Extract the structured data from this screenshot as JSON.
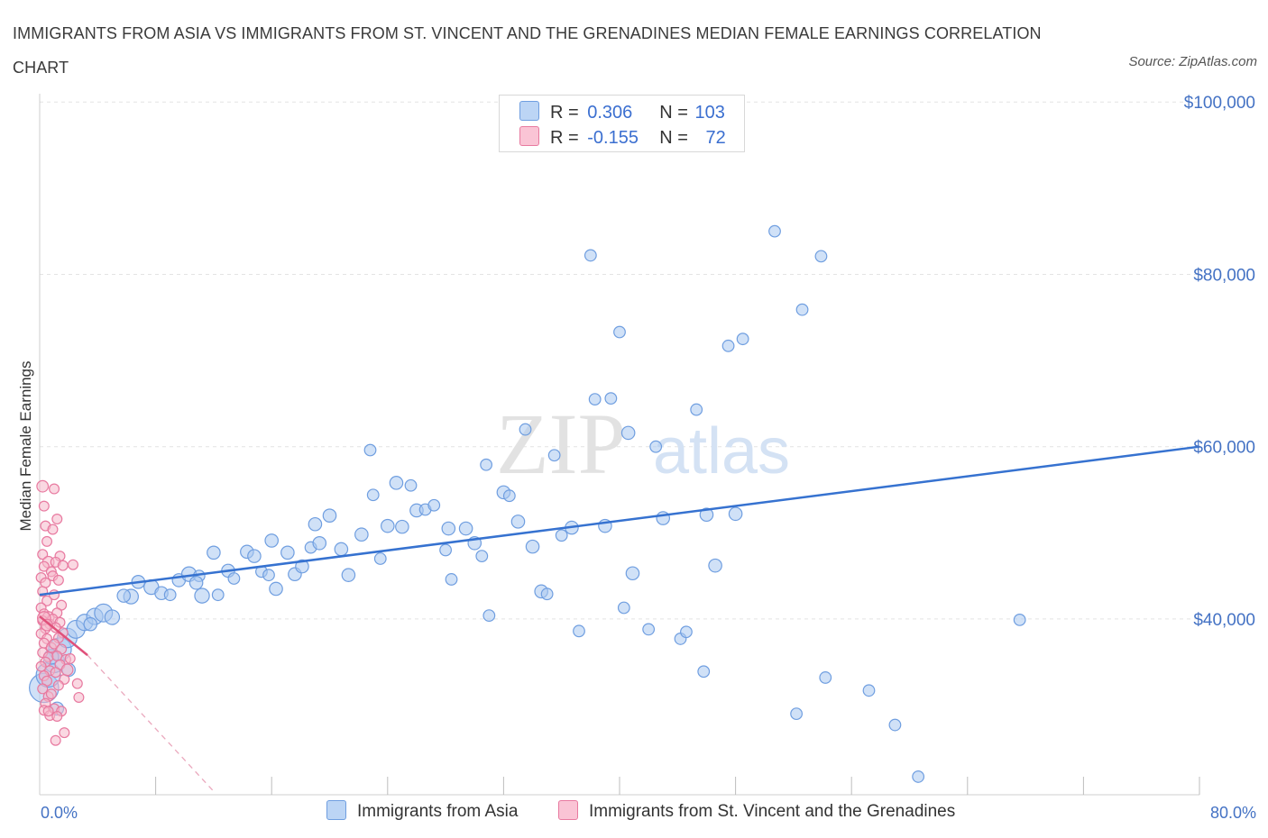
{
  "title": "IMMIGRANTS FROM ASIA VS IMMIGRANTS FROM ST. VINCENT AND THE GRENADINES MEDIAN FEMALE EARNINGS CORRELATION CHART",
  "source": "Source: ZipAtlas.com",
  "watermark": {
    "zip": "ZIP",
    "atlas": "atlas"
  },
  "legend": {
    "r_label": "R =",
    "n_label": "N =",
    "asia": {
      "r": "0.306",
      "n": "103"
    },
    "svg": {
      "r": "-0.155",
      "n": "72"
    }
  },
  "colors": {
    "asia_fill": "#aac8f0",
    "asia_stroke": "#6f9ee0",
    "asia_line": "#3672d0",
    "svg_fill": "#f6b8cb",
    "svg_stroke": "#e87aa0",
    "svg_line": "#e0507a",
    "axis_label": "#4472c4"
  },
  "chart_data": {
    "type": "scatter",
    "title": "IMMIGRANTS FROM ASIA VS IMMIGRANTS FROM ST. VINCENT AND THE GRENADINES MEDIAN FEMALE EARNINGS CORRELATION CHART",
    "xlabel": "",
    "ylabel": "Median Female Earnings",
    "xlim": [
      0,
      80
    ],
    "ylim": [
      20000,
      100000
    ],
    "x_tick_labels": [
      "0.0%",
      "80.0%"
    ],
    "y_ticks": [
      40000,
      60000,
      80000,
      100000
    ],
    "y_tick_labels": [
      "$40,000",
      "$60,000",
      "$80,000",
      "$100,000"
    ],
    "grid": true,
    "legend_position": "top-center",
    "series": [
      {
        "name": "Immigrants from Asia",
        "trend": {
          "x": [
            0,
            80
          ],
          "y": [
            42800,
            60000
          ]
        },
        "points": [
          [
            0.3,
            32000,
            1.8
          ],
          [
            0.6,
            33500,
            1.5
          ],
          [
            1.0,
            35000,
            1.3
          ],
          [
            1.4,
            36500,
            1.4
          ],
          [
            1.9,
            37800,
            1.2
          ],
          [
            2.5,
            38800,
            1.1
          ],
          [
            3.1,
            39600,
            1.0
          ],
          [
            3.8,
            40300,
            1.0
          ],
          [
            4.4,
            40700,
            1.1
          ],
          [
            5.0,
            40200,
            0.9
          ],
          [
            6.3,
            42600,
            0.9
          ],
          [
            6.8,
            44300,
            0.8
          ],
          [
            7.7,
            43700,
            0.9
          ],
          [
            8.4,
            43000,
            0.8
          ],
          [
            9.6,
            44500,
            0.8
          ],
          [
            10.3,
            45200,
            0.9
          ],
          [
            11.2,
            42700,
            0.9
          ],
          [
            12.0,
            47700,
            0.8
          ],
          [
            12.3,
            42800,
            0.7
          ],
          [
            11.0,
            45000,
            0.7
          ],
          [
            13.0,
            45600,
            0.8
          ],
          [
            13.4,
            44700,
            0.7
          ],
          [
            14.3,
            47800,
            0.8
          ],
          [
            14.8,
            47300,
            0.8
          ],
          [
            15.3,
            45500,
            0.7
          ],
          [
            16.0,
            49100,
            0.8
          ],
          [
            16.3,
            43500,
            0.8
          ],
          [
            17.1,
            47700,
            0.8
          ],
          [
            17.6,
            45200,
            0.8
          ],
          [
            18.1,
            46100,
            0.8
          ],
          [
            18.7,
            48300,
            0.7
          ],
          [
            19.3,
            48800,
            0.8
          ],
          [
            19.0,
            51000,
            0.8
          ],
          [
            20.0,
            52000,
            0.8
          ],
          [
            20.8,
            48100,
            0.8
          ],
          [
            21.3,
            45100,
            0.8
          ],
          [
            22.2,
            49800,
            0.8
          ],
          [
            22.8,
            59600,
            0.7
          ],
          [
            23.0,
            54400,
            0.7
          ],
          [
            24.0,
            50800,
            0.8
          ],
          [
            24.6,
            55800,
            0.8
          ],
          [
            25.0,
            50700,
            0.8
          ],
          [
            26.0,
            52600,
            0.8
          ],
          [
            25.6,
            55500,
            0.7
          ],
          [
            26.6,
            52700,
            0.7
          ],
          [
            27.2,
            53200,
            0.7
          ],
          [
            28.2,
            50500,
            0.8
          ],
          [
            28.0,
            48000,
            0.7
          ],
          [
            28.4,
            44600,
            0.7
          ],
          [
            29.4,
            50500,
            0.8
          ],
          [
            30.0,
            48800,
            0.8
          ],
          [
            30.5,
            47300,
            0.7
          ],
          [
            30.8,
            57900,
            0.7
          ],
          [
            31.0,
            40400,
            0.7
          ],
          [
            32.0,
            54700,
            0.8
          ],
          [
            32.4,
            54300,
            0.7
          ],
          [
            33.0,
            51300,
            0.8
          ],
          [
            33.5,
            62000,
            0.7
          ],
          [
            34.0,
            48400,
            0.8
          ],
          [
            34.6,
            43200,
            0.8
          ],
          [
            35.0,
            42900,
            0.7
          ],
          [
            35.5,
            59000,
            0.7
          ],
          [
            36.0,
            49700,
            0.7
          ],
          [
            36.7,
            50600,
            0.8
          ],
          [
            37.2,
            38600,
            0.7
          ],
          [
            38.0,
            82200,
            0.7
          ],
          [
            38.3,
            65500,
            0.7
          ],
          [
            39.0,
            50800,
            0.8
          ],
          [
            39.4,
            65600,
            0.7
          ],
          [
            40.0,
            73300,
            0.7
          ],
          [
            40.3,
            41300,
            0.7
          ],
          [
            40.6,
            61600,
            0.8
          ],
          [
            40.9,
            45300,
            0.8
          ],
          [
            42.0,
            38800,
            0.7
          ],
          [
            42.5,
            60000,
            0.7
          ],
          [
            43.0,
            51700,
            0.8
          ],
          [
            44.2,
            37700,
            0.7
          ],
          [
            44.6,
            38500,
            0.7
          ],
          [
            45.3,
            64300,
            0.7
          ],
          [
            45.8,
            33900,
            0.7
          ],
          [
            46.0,
            52100,
            0.8
          ],
          [
            46.6,
            46200,
            0.8
          ],
          [
            47.5,
            71700,
            0.7
          ],
          [
            48.0,
            52200,
            0.8
          ],
          [
            48.5,
            72500,
            0.7
          ],
          [
            50.7,
            85000,
            0.7
          ],
          [
            52.6,
            75900,
            0.7
          ],
          [
            52.2,
            29000,
            0.7
          ],
          [
            53.9,
            82100,
            0.7
          ],
          [
            54.2,
            33200,
            0.7
          ],
          [
            57.2,
            31700,
            0.7
          ],
          [
            59.0,
            27700,
            0.7
          ],
          [
            60.6,
            21700,
            0.7
          ],
          [
            67.6,
            39900,
            0.7
          ],
          [
            1.2,
            29600,
            0.8
          ],
          [
            2.0,
            34100,
            0.8
          ],
          [
            0.8,
            35600,
            0.9
          ],
          [
            3.5,
            39400,
            0.8
          ],
          [
            5.8,
            42700,
            0.8
          ],
          [
            9.0,
            42800,
            0.7
          ],
          [
            10.8,
            44200,
            0.8
          ],
          [
            15.8,
            45100,
            0.7
          ],
          [
            23.5,
            47000,
            0.7
          ]
        ]
      },
      {
        "name": "Immigrants from St. Vincent and the Grenadines",
        "trend": {
          "x": [
            0,
            3.3
          ],
          "y": [
            40300,
            35800
          ]
        },
        "trend_dashed": {
          "x": [
            3.3,
            12
          ],
          "y": [
            35800,
            20000
          ]
        },
        "points": [
          [
            0.2,
            55400,
            0.7
          ],
          [
            0.3,
            53100,
            0.6
          ],
          [
            0.4,
            50800,
            0.6
          ],
          [
            0.5,
            49000,
            0.6
          ],
          [
            0.2,
            47500,
            0.6
          ],
          [
            0.6,
            46600,
            0.7
          ],
          [
            0.3,
            46100,
            0.6
          ],
          [
            0.8,
            45500,
            0.6
          ],
          [
            0.1,
            44800,
            0.6
          ],
          [
            0.4,
            44200,
            0.6
          ],
          [
            0.2,
            43200,
            0.6
          ],
          [
            0.5,
            42100,
            0.6
          ],
          [
            0.1,
            41300,
            0.6
          ],
          [
            0.3,
            40600,
            0.6
          ],
          [
            0.6,
            40200,
            0.7
          ],
          [
            0.2,
            39800,
            0.6
          ],
          [
            0.7,
            39400,
            0.6
          ],
          [
            0.4,
            38900,
            0.6
          ],
          [
            0.1,
            38300,
            0.6
          ],
          [
            0.5,
            37700,
            0.6
          ],
          [
            0.3,
            37200,
            0.6
          ],
          [
            0.8,
            36700,
            0.6
          ],
          [
            0.2,
            36100,
            0.6
          ],
          [
            0.6,
            35600,
            0.6
          ],
          [
            0.4,
            35000,
            0.6
          ],
          [
            0.1,
            34500,
            0.6
          ],
          [
            0.7,
            34000,
            0.6
          ],
          [
            0.3,
            33400,
            0.6
          ],
          [
            0.5,
            32800,
            0.6
          ],
          [
            0.2,
            31900,
            0.6
          ],
          [
            0.6,
            31000,
            0.6
          ],
          [
            0.4,
            30200,
            0.6
          ],
          [
            0.3,
            29400,
            0.6
          ],
          [
            0.7,
            28800,
            0.6
          ],
          [
            1.0,
            55100,
            0.6
          ],
          [
            1.2,
            51600,
            0.6
          ],
          [
            0.9,
            50400,
            0.6
          ],
          [
            1.4,
            47300,
            0.6
          ],
          [
            1.1,
            46600,
            0.6
          ],
          [
            1.6,
            46200,
            0.6
          ],
          [
            0.9,
            45000,
            0.6
          ],
          [
            1.3,
            44500,
            0.6
          ],
          [
            1.0,
            42800,
            0.6
          ],
          [
            1.5,
            41600,
            0.6
          ],
          [
            1.2,
            40700,
            0.6
          ],
          [
            0.9,
            40000,
            0.6
          ],
          [
            1.4,
            39600,
            0.6
          ],
          [
            1.1,
            39000,
            0.6
          ],
          [
            1.6,
            38400,
            0.6
          ],
          [
            1.3,
            37800,
            0.6
          ],
          [
            1.0,
            37100,
            0.6
          ],
          [
            1.5,
            36500,
            0.6
          ],
          [
            1.2,
            35700,
            0.6
          ],
          [
            1.8,
            35300,
            0.6
          ],
          [
            1.4,
            34700,
            0.6
          ],
          [
            1.1,
            33800,
            0.6
          ],
          [
            1.7,
            33000,
            0.6
          ],
          [
            1.3,
            32300,
            0.6
          ],
          [
            1.0,
            29600,
            0.6
          ],
          [
            1.5,
            29300,
            0.6
          ],
          [
            1.2,
            28700,
            0.6
          ],
          [
            1.1,
            25900,
            0.6
          ],
          [
            1.7,
            26800,
            0.6
          ],
          [
            2.3,
            46300,
            0.6
          ],
          [
            2.6,
            32500,
            0.6
          ],
          [
            2.7,
            30900,
            0.6
          ],
          [
            0.3,
            40100,
            0.8
          ],
          [
            0.5,
            39300,
            0.7
          ],
          [
            1.9,
            34100,
            0.7
          ],
          [
            2.1,
            35400,
            0.6
          ],
          [
            0.8,
            31300,
            0.6
          ],
          [
            0.6,
            29300,
            0.6
          ]
        ]
      }
    ]
  },
  "bottom_legend": {
    "asia": "Immigrants from Asia",
    "svg": "Immigrants from St. Vincent and the Grenadines"
  }
}
